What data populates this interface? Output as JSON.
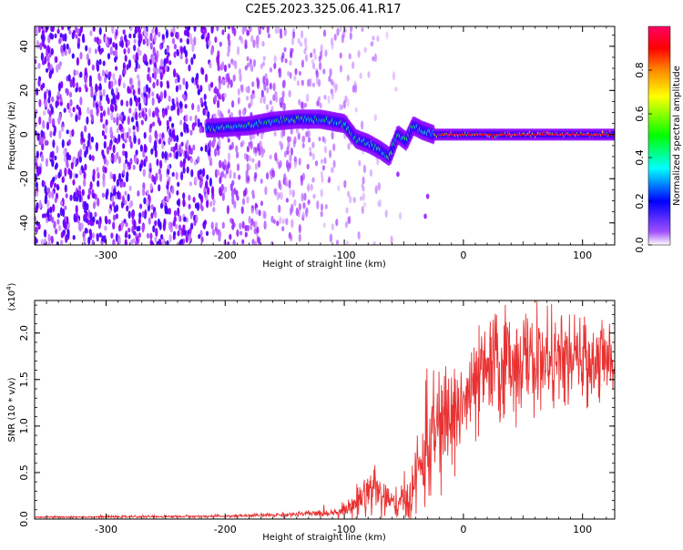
{
  "title": "C2E5.2023.325.06.41.R17",
  "chart_data": [
    {
      "type": "heatmap",
      "title": "C2E5.2023.325.06.41.R17",
      "xlabel": "Height of straight line (km)",
      "ylabel": "Frequency (Hz)",
      "xlim": [
        -360,
        127
      ],
      "ylim": [
        -50,
        49
      ],
      "xticks": [
        -300,
        -200,
        -100,
        0,
        100
      ],
      "xtick_labels": [
        "-300",
        "-200",
        "-100",
        "0",
        "100"
      ],
      "yticks": [
        -40,
        -20,
        0,
        20,
        40
      ],
      "ytick_labels": [
        "-40",
        "-20",
        "0",
        "20",
        "40"
      ],
      "colorbar": {
        "label": "Normalized spectral amplitude",
        "range": [
          0,
          1
        ],
        "ticks": [
          0.0,
          0.2,
          0.4,
          0.6,
          0.8
        ],
        "tick_labels": [
          "0.0",
          "0.2",
          "0.4",
          "0.6",
          "0.8"
        ],
        "colormap": [
          "#ffffff",
          "#8800ff",
          "#0000ff",
          "#00ffff",
          "#00ff00",
          "#ffff00",
          "#ff8800",
          "#ff0000",
          "#ff0066"
        ]
      },
      "ridge": {
        "x": [
          -210,
          -180,
          -160,
          -140,
          -120,
          -100,
          -90,
          -80,
          -70,
          -62,
          -55,
          -48,
          -42,
          -35,
          -25,
          -10,
          0,
          50,
          100,
          127
        ],
        "y": [
          3,
          4,
          6,
          7,
          7,
          5,
          -2,
          -4,
          -7,
          -10,
          0,
          -3,
          4,
          2,
          0,
          0,
          0,
          0,
          0,
          0
        ]
      }
    },
    {
      "type": "line",
      "xlabel": "Height of straight line (km)",
      "ylabel": "SNR (10 * v/v)",
      "y_multiplier_label": "(x10",
      "y_multiplier_exp": "4",
      "y_multiplier_close": ")",
      "xlim": [
        -360,
        127
      ],
      "ylim": [
        0,
        23500
      ],
      "xticks": [
        -300,
        -200,
        -100,
        0,
        100
      ],
      "xtick_labels": [
        "-300",
        "-200",
        "-100",
        "0",
        "100"
      ],
      "yticks": [
        0,
        5000,
        10000,
        15000,
        20000
      ],
      "ytick_labels": [
        "0.0",
        "0.5",
        "1.0",
        "1.5",
        "2.0"
      ],
      "series": [
        {
          "name": "SNR",
          "color": "#e83232",
          "envelope_x": [
            -360,
            -200,
            -140,
            -110,
            -95,
            -85,
            -75,
            -68,
            -60,
            -52,
            -45,
            -38,
            -30,
            -20,
            -10,
            0,
            10,
            20,
            30,
            40,
            50,
            60,
            80,
            100,
            127
          ],
          "envelope_y": [
            200,
            300,
            500,
            700,
            1200,
            2500,
            3500,
            2500,
            1500,
            1500,
            2500,
            5000,
            8000,
            10000,
            11000,
            12500,
            14000,
            16000,
            16500,
            17000,
            17000,
            17000,
            17000,
            17000,
            17000
          ],
          "noise_amplitude": [
            50,
            80,
            150,
            250,
            500,
            1200,
            2000,
            1500,
            1000,
            1200,
            1800,
            2500,
            3500,
            3500,
            3500,
            3000,
            3000,
            3000,
            3500,
            3500,
            3000,
            3000,
            2500,
            2500,
            2500
          ]
        }
      ]
    }
  ]
}
